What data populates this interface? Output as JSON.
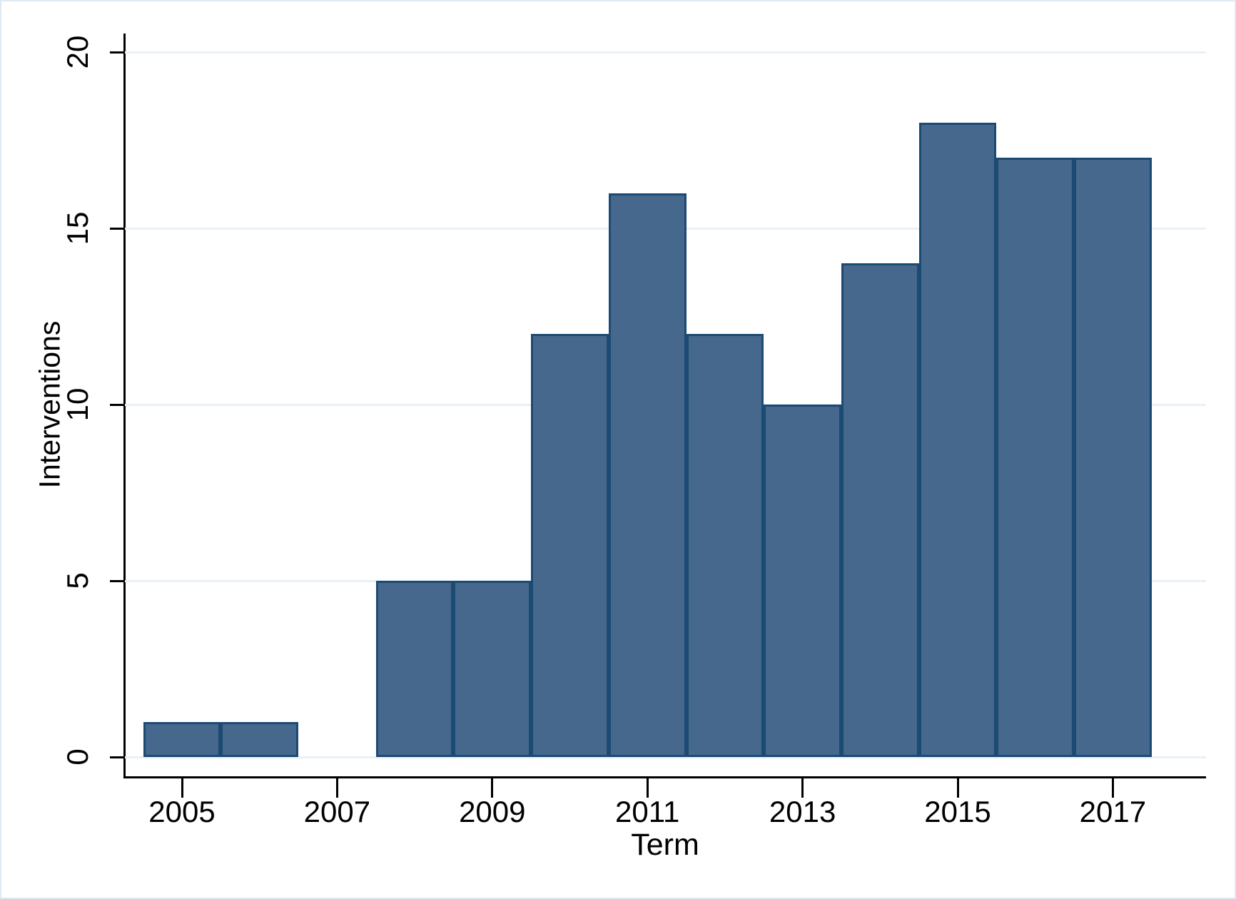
{
  "chart_data": {
    "type": "bar",
    "subtype": "histogram",
    "title": "",
    "xlabel": "Term",
    "ylabel": "Interventions",
    "categories": [
      2005,
      2006,
      2007,
      2008,
      2009,
      2010,
      2011,
      2012,
      2013,
      2014,
      2015,
      2016,
      2017
    ],
    "values": [
      1,
      1,
      0,
      5,
      5,
      12,
      16,
      12,
      10,
      14,
      18,
      17,
      17
    ],
    "bin_width": 1,
    "xticks": [
      2005,
      2007,
      2009,
      2011,
      2013,
      2015,
      2017
    ],
    "yticks": [
      0,
      5,
      10,
      15,
      20
    ],
    "ylim": [
      0,
      20
    ],
    "xlim": [
      2004.3,
      2018.2
    ],
    "grid": "horizontal-only",
    "legend_position": "none",
    "colors": {
      "bar_fill": "#47688d",
      "bar_border": "#1b4a73",
      "gridline": "#e9f1f6",
      "axis": "#000000",
      "text": "#000000",
      "frame_border": "#dfe9f1",
      "background": "#ffffff"
    }
  }
}
